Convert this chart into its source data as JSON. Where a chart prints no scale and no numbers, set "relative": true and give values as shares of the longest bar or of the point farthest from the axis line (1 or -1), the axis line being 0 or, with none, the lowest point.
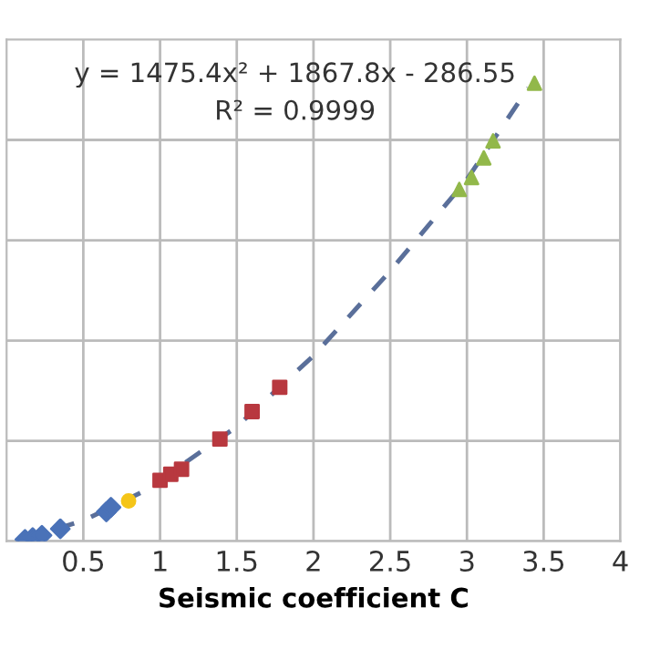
{
  "chart_data": {
    "type": "scatter",
    "relative": true,
    "xlabel": "Seismic coefficient C",
    "xlim": [
      0,
      4
    ],
    "xticks": [
      0.5,
      1,
      1.5,
      2,
      2.5,
      3,
      3.5,
      4
    ],
    "grid": true,
    "annotations": [
      "y = 1475.4x² + 1867.8x - 286.55",
      "R² = 0.9999"
    ],
    "series": [
      {
        "type": "line",
        "color": "#5a6f9a",
        "line_style": "dashed",
        "marker": "none",
        "x": [
          0.1,
          0.5,
          0.9,
          1.5,
          2.0,
          2.5,
          3.0,
          3.4
        ],
        "values": [
          0.003,
          0.045,
          0.11,
          0.25,
          0.405,
          0.59,
          0.79,
          0.99
        ]
      },
      {
        "color": "#4a72b8",
        "marker": "diamond",
        "x": [
          0.12,
          0.17,
          0.23,
          0.35,
          0.65,
          0.68
        ],
        "values": [
          0.004,
          0.008,
          0.013,
          0.027,
          0.064,
          0.074
        ]
      },
      {
        "color": "#f5c518",
        "marker": "circle",
        "x": [
          0.795
        ],
        "values": [
          0.088
        ]
      },
      {
        "color": "#b8383f",
        "marker": "square",
        "x": [
          1.0,
          1.07,
          1.14,
          1.39,
          1.6,
          1.78
        ],
        "values": [
          0.133,
          0.146,
          0.157,
          0.223,
          0.283,
          0.336
        ]
      },
      {
        "color": "#92b84a",
        "marker": "triangle",
        "x": [
          2.95,
          3.03,
          3.11,
          3.17,
          3.44
        ],
        "values": [
          0.768,
          0.794,
          0.837,
          0.874,
          1.0
        ]
      }
    ]
  }
}
